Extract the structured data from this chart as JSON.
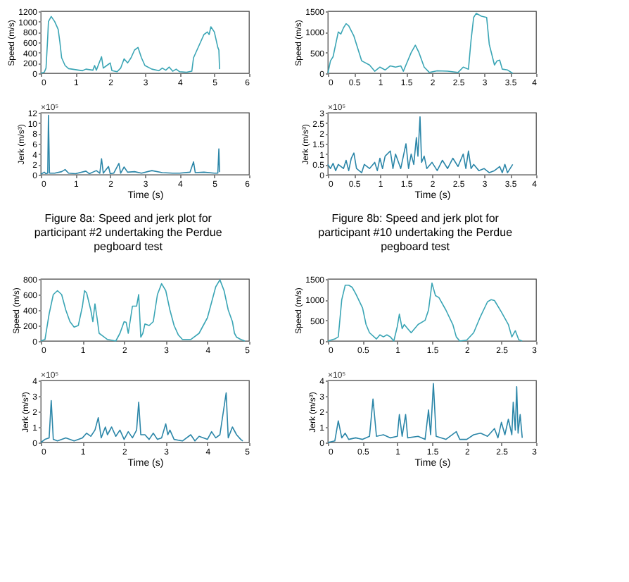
{
  "chart_data": [
    {
      "type": "line",
      "ylabel": "Speed (m/s)",
      "xlim": [
        0,
        6
      ],
      "xticks": [
        0,
        1,
        2,
        3,
        4,
        5,
        6
      ],
      "ylim": [
        0,
        1200
      ],
      "yticks": [
        0,
        200,
        400,
        600,
        800,
        1000,
        1200
      ],
      "grid": false,
      "x": [
        0,
        0.1,
        0.15,
        0.2,
        0.22,
        0.3,
        0.4,
        0.5,
        0.55,
        0.6,
        0.7,
        0.8,
        1.0,
        1.2,
        1.3,
        1.5,
        1.55,
        1.6,
        1.75,
        1.8,
        1.9,
        2.0,
        2.05,
        2.2,
        2.3,
        2.4,
        2.5,
        2.6,
        2.7,
        2.8,
        2.9,
        3.0,
        3.2,
        3.4,
        3.5,
        3.6,
        3.7,
        3.8,
        3.9,
        4.0,
        4.2,
        4.35,
        4.4,
        4.5,
        4.6,
        4.7,
        4.8,
        4.85,
        4.9,
        5.0,
        5.1,
        5.13,
        5.15
      ],
      "series": [
        {
          "color": "#3aa5b5",
          "values": [
            0,
            20,
            100,
            700,
            1000,
            1100,
            1000,
            850,
            600,
            300,
            150,
            90,
            70,
            50,
            80,
            60,
            150,
            60,
            320,
            100,
            150,
            200,
            50,
            30,
            100,
            280,
            200,
            300,
            450,
            500,
            300,
            150,
            80,
            50,
            100,
            60,
            120,
            40,
            80,
            30,
            20,
            40,
            300,
            450,
            600,
            750,
            800,
            750,
            900,
            800,
            500,
            450,
            80
          ]
        }
      ]
    },
    {
      "type": "line",
      "ylabel": "Jerk (m/s³)",
      "xlabel": "Time (s)",
      "xlim": [
        0,
        6
      ],
      "xticks": [
        0,
        1,
        2,
        3,
        4,
        5,
        6
      ],
      "ylim": [
        0,
        12
      ],
      "yticks": [
        0,
        2,
        4,
        6,
        8,
        10,
        12
      ],
      "grid": false,
      "annotations": [
        "×10⁵",
        "Figure 8a: Speed and jerk plot for participant #2 undertaking the Perdue pegboard test"
      ],
      "x": [
        0,
        0.1,
        0.15,
        0.2,
        0.22,
        0.25,
        0.4,
        0.6,
        0.7,
        0.8,
        1.0,
        1.3,
        1.4,
        1.6,
        1.7,
        1.75,
        1.8,
        1.95,
        2.0,
        2.1,
        2.25,
        2.3,
        2.4,
        2.5,
        2.7,
        2.9,
        3.2,
        3.5,
        3.8,
        4.0,
        4.3,
        4.4,
        4.45,
        4.7,
        5.0,
        5.1,
        5.13,
        5.15
      ],
      "series": [
        {
          "color": "#2b86a8",
          "values": [
            0.1,
            0.5,
            0.2,
            0.3,
            11.5,
            0.3,
            0.3,
            0.6,
            1,
            0.3,
            0.2,
            0.7,
            0.2,
            0.8,
            0.3,
            3.1,
            0.3,
            1.6,
            0.2,
            0.3,
            2.2,
            0.3,
            1.5,
            0.5,
            0.6,
            0.3,
            0.8,
            0.4,
            0.3,
            0.3,
            0.5,
            2.5,
            0.4,
            0.5,
            0.3,
            0.3,
            5,
            0.5
          ]
        }
      ]
    },
    {
      "type": "line",
      "ylabel": "Speed (m/s)",
      "xlim": [
        0,
        4
      ],
      "xticks": [
        0,
        0.5,
        1,
        1.5,
        2,
        2.5,
        3,
        3.5,
        4
      ],
      "ylim": [
        0,
        1500
      ],
      "yticks": [
        0,
        500,
        1000,
        1500
      ],
      "grid": false,
      "x": [
        0,
        0.05,
        0.1,
        0.2,
        0.25,
        0.3,
        0.35,
        0.4,
        0.5,
        0.6,
        0.65,
        0.8,
        0.9,
        1.0,
        1.1,
        1.2,
        1.3,
        1.4,
        1.45,
        1.5,
        1.6,
        1.68,
        1.75,
        1.85,
        1.95,
        2.1,
        2.3,
        2.5,
        2.6,
        2.7,
        2.75,
        2.8,
        2.85,
        2.95,
        3.05,
        3.1,
        3.2,
        3.25,
        3.3,
        3.35,
        3.45,
        3.55
      ],
      "series": [
        {
          "color": "#3aa5b5",
          "values": [
            0,
            300,
            400,
            1000,
            950,
            1100,
            1200,
            1150,
            900,
            500,
            300,
            200,
            50,
            150,
            80,
            180,
            150,
            180,
            50,
            200,
            500,
            680,
            500,
            150,
            20,
            60,
            50,
            20,
            150,
            100,
            800,
            1350,
            1450,
            1380,
            1350,
            700,
            200,
            300,
            320,
            100,
            80,
            0
          ]
        }
      ]
    },
    {
      "type": "line",
      "ylabel": "Jerk (m/s³)",
      "xlabel": "Time (s)",
      "xlim": [
        0,
        4
      ],
      "xticks": [
        0,
        0.5,
        1,
        1.5,
        2,
        2.5,
        3,
        3.5,
        4
      ],
      "ylim": [
        0,
        3
      ],
      "yticks": [
        0,
        0.5,
        1,
        1.5,
        2,
        2.5,
        3
      ],
      "grid": false,
      "annotations": [
        "×10⁵",
        "Figure 8b: Speed and jerk plot for participant #10 undertaking the Perdue pegboard test"
      ],
      "x": [
        0,
        0.05,
        0.1,
        0.15,
        0.2,
        0.3,
        0.35,
        0.4,
        0.45,
        0.5,
        0.55,
        0.65,
        0.7,
        0.8,
        0.9,
        0.95,
        1.0,
        1.05,
        1.1,
        1.2,
        1.25,
        1.3,
        1.4,
        1.5,
        1.55,
        1.6,
        1.65,
        1.7,
        1.73,
        1.77,
        1.8,
        1.85,
        1.9,
        2.0,
        2.1,
        2.2,
        2.3,
        2.4,
        2.5,
        2.6,
        2.65,
        2.7,
        2.75,
        2.8,
        2.9,
        3.0,
        3.1,
        3.2,
        3.3,
        3.35,
        3.4,
        3.45,
        3.55
      ],
      "series": [
        {
          "color": "#2b86a8",
          "values": [
            0.5,
            0.3,
            0.55,
            0.2,
            0.5,
            0.3,
            0.7,
            0.2,
            0.8,
            1.05,
            0.3,
            0.1,
            0.5,
            0.3,
            0.6,
            0.2,
            0.8,
            0.3,
            0.9,
            1.15,
            0.3,
            1.0,
            0.3,
            1.5,
            0.3,
            1.0,
            0.5,
            1.8,
            0.9,
            2.8,
            0.6,
            0.9,
            0.3,
            0.6,
            0.2,
            0.7,
            0.3,
            0.8,
            0.4,
            1.0,
            0.3,
            1.15,
            0.3,
            0.5,
            0.2,
            0.3,
            0.1,
            0.2,
            0.4,
            0.1,
            0.5,
            0.1,
            0.5
          ]
        }
      ]
    },
    {
      "type": "line",
      "ylabel": "Speed (m/s)",
      "xlim": [
        0,
        5
      ],
      "xticks": [
        0,
        1,
        2,
        3,
        4,
        5
      ],
      "ylim": [
        0,
        800
      ],
      "yticks": [
        0,
        200,
        400,
        600,
        800
      ],
      "grid": false,
      "x": [
        0,
        0.1,
        0.2,
        0.3,
        0.4,
        0.5,
        0.6,
        0.7,
        0.8,
        0.9,
        1.0,
        1.05,
        1.1,
        1.2,
        1.25,
        1.3,
        1.35,
        1.4,
        1.5,
        1.6,
        1.8,
        1.9,
        2.0,
        2.05,
        2.1,
        2.2,
        2.3,
        2.35,
        2.4,
        2.45,
        2.5,
        2.6,
        2.7,
        2.8,
        2.9,
        3.0,
        3.1,
        3.2,
        3.3,
        3.4,
        3.6,
        3.8,
        4.0,
        4.1,
        4.2,
        4.3,
        4.4,
        4.5,
        4.6,
        4.65,
        4.7,
        4.8,
        4.9
      ],
      "series": [
        {
          "color": "#3aa5b5",
          "values": [
            0,
            20,
            350,
            600,
            650,
            600,
            400,
            250,
            180,
            200,
            450,
            650,
            620,
            400,
            250,
            480,
            300,
            100,
            60,
            20,
            0,
            100,
            250,
            240,
            100,
            450,
            450,
            600,
            50,
            100,
            220,
            200,
            250,
            600,
            740,
            650,
            400,
            200,
            80,
            20,
            20,
            100,
            300,
            500,
            700,
            790,
            650,
            400,
            250,
            100,
            50,
            20,
            0
          ]
        }
      ]
    },
    {
      "type": "line",
      "ylabel": "Jerk (m/s³)",
      "xlabel": "Time (s)",
      "xlim": [
        0,
        5
      ],
      "xticks": [
        0,
        1,
        2,
        3,
        4,
        5
      ],
      "ylim": [
        0,
        4
      ],
      "yticks": [
        0,
        1,
        2,
        3,
        4
      ],
      "grid": false,
      "annotations": [
        "×10⁵"
      ],
      "x": [
        0,
        0.1,
        0.2,
        0.25,
        0.3,
        0.4,
        0.6,
        0.8,
        1.0,
        1.1,
        1.2,
        1.3,
        1.38,
        1.45,
        1.55,
        1.6,
        1.7,
        1.8,
        1.9,
        2.0,
        2.1,
        2.2,
        2.3,
        2.35,
        2.4,
        2.5,
        2.6,
        2.7,
        2.8,
        2.9,
        3.0,
        3.05,
        3.1,
        3.2,
        3.4,
        3.6,
        3.7,
        3.8,
        4.0,
        4.1,
        4.2,
        4.3,
        4.45,
        4.5,
        4.6,
        4.7,
        4.8,
        4.85
      ],
      "series": [
        {
          "color": "#2b86a8",
          "values": [
            0,
            0.2,
            0.3,
            2.7,
            0.2,
            0.1,
            0.3,
            0.1,
            0.3,
            0.6,
            0.4,
            0.8,
            1.6,
            0.3,
            1.0,
            0.5,
            1.0,
            0.4,
            0.8,
            0.2,
            0.7,
            0.3,
            0.8,
            2.6,
            0.5,
            0.5,
            0.2,
            0.6,
            0.2,
            0.3,
            1.2,
            0.5,
            0.8,
            0.2,
            0.1,
            0.5,
            0.1,
            0.4,
            0.2,
            0.7,
            0.3,
            0.5,
            3.2,
            0.3,
            1.0,
            0.5,
            0.2,
            0.1
          ]
        }
      ]
    },
    {
      "type": "line",
      "ylabel": "Speed (m/s)",
      "xlim": [
        0,
        3
      ],
      "xticks": [
        0,
        0.5,
        1,
        1.5,
        2,
        2.5,
        3
      ],
      "ylim": [
        0,
        1500
      ],
      "yticks": [
        0,
        500,
        1000,
        1500
      ],
      "grid": false,
      "x": [
        0,
        0.1,
        0.15,
        0.2,
        0.25,
        0.3,
        0.35,
        0.4,
        0.5,
        0.55,
        0.6,
        0.7,
        0.75,
        0.8,
        0.85,
        0.9,
        0.95,
        1.0,
        1.03,
        1.07,
        1.1,
        1.15,
        1.2,
        1.3,
        1.4,
        1.45,
        1.5,
        1.55,
        1.6,
        1.7,
        1.8,
        1.85,
        1.9,
        2.0,
        2.1,
        2.2,
        2.3,
        2.35,
        2.4,
        2.5,
        2.6,
        2.65,
        2.7,
        2.75,
        2.8
      ],
      "series": [
        {
          "color": "#3aa5b5",
          "values": [
            0,
            50,
            100,
            1000,
            1350,
            1350,
            1300,
            1150,
            800,
            400,
            200,
            50,
            150,
            100,
            150,
            100,
            0,
            350,
            650,
            300,
            400,
            300,
            200,
            400,
            500,
            750,
            1400,
            1100,
            1050,
            750,
            400,
            100,
            0,
            20,
            200,
            600,
            950,
            1000,
            980,
            700,
            400,
            100,
            250,
            30,
            0
          ]
        }
      ]
    },
    {
      "type": "line",
      "ylabel": "Jerk (m/s³)",
      "xlabel": "Time (s)",
      "xlim": [
        0,
        3
      ],
      "xticks": [
        0,
        0.5,
        1,
        1.5,
        2,
        2.5,
        3
      ],
      "ylim": [
        0,
        4
      ],
      "yticks": [
        0,
        1,
        2,
        3,
        4
      ],
      "grid": false,
      "annotations": [
        "×10⁵"
      ],
      "x": [
        0,
        0.1,
        0.15,
        0.2,
        0.25,
        0.3,
        0.4,
        0.5,
        0.6,
        0.65,
        0.7,
        0.8,
        0.9,
        1.0,
        1.03,
        1.07,
        1.12,
        1.15,
        1.3,
        1.4,
        1.45,
        1.48,
        1.52,
        1.56,
        1.7,
        1.85,
        1.9,
        2.0,
        2.1,
        2.2,
        2.3,
        2.4,
        2.45,
        2.5,
        2.55,
        2.6,
        2.65,
        2.67,
        2.7,
        2.72,
        2.74,
        2.77,
        2.8
      ],
      "series": [
        {
          "color": "#2b86a8",
          "values": [
            0,
            0.1,
            1.4,
            0.3,
            0.6,
            0.2,
            0.3,
            0.2,
            0.4,
            2.8,
            0.4,
            0.5,
            0.3,
            0.4,
            1.8,
            0.4,
            1.8,
            0.3,
            0.4,
            0.2,
            2.1,
            0.5,
            3.8,
            0.4,
            0.2,
            0.7,
            0.2,
            0.2,
            0.5,
            0.6,
            0.4,
            0.9,
            0.3,
            1.3,
            0.5,
            1.5,
            0.5,
            2.6,
            0.8,
            3.6,
            0.6,
            1.8,
            0.3
          ]
        }
      ]
    }
  ]
}
